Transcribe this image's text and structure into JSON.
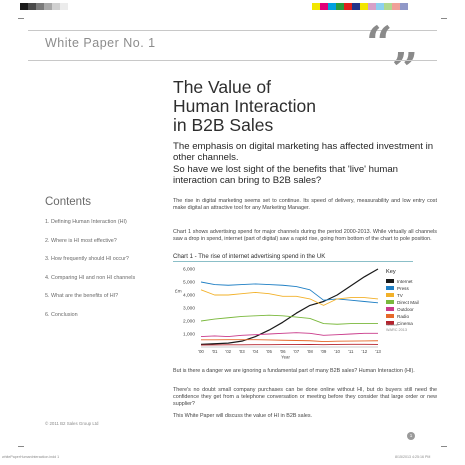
{
  "header": {
    "white_paper_label": "White Paper No. 1",
    "quote_glyph": "“„"
  },
  "title_lines": [
    "The Value of",
    "Human Interaction",
    "in B2B Sales"
  ],
  "subheads": [
    "The emphasis on digital marketing has affected investment in other channels.",
    "So have we lost sight of the benefits that 'live' human interaction can bring to B2B sales?"
  ],
  "contents": {
    "title": "Contents",
    "items": [
      "1. Defining Human Interaction (HI)",
      "2. Where is HI most effective?",
      "3. How frequently should HI occur?",
      "4. Comparing HI and non HI channels",
      "5. What are the benefits of HI?",
      "6. Conclusion"
    ]
  },
  "body": {
    "para_1": "The rise in digital marketing seems set to continue. Its speed of delivery, measurability and low entry cost make digital an attractive tool for any Marketing Manager.",
    "para_2": "Chart 1 shows advertising spend for major channels during the period 2000-2013. While virtually all channels saw a drop in spend, internet (part of digital) saw a rapid rise, going from bottom of the chart to pole position.",
    "para_3": "But is there a danger we are ignoring a fundamental part of many B2B sales? Human Interaction (HI).",
    "para_4": "There's no doubt small company purchases can be done online without HI, but do buyers still need the confidence they get from a telephone conversation or meeting before they consider that large order or new supplier?",
    "para_5": "This White Paper will discuss the value of HI in B2B sales."
  },
  "chart_data": {
    "type": "line",
    "title": "Chart 1 - The rise of internet advertising spend in the UK",
    "ylabel": "£m",
    "xlabel": "Year",
    "ylim": [
      0,
      6000
    ],
    "yticks": [
      "6,000",
      "5,000",
      "4,000",
      "3,000",
      "2,000",
      "1,000"
    ],
    "x": [
      "'00",
      "'01",
      "'02",
      "'03",
      "'04",
      "'05",
      "'06",
      "'07",
      "'08",
      "'09",
      "'10",
      "'11",
      "'12",
      "'13"
    ],
    "legend_title": "Key",
    "legend_position": "right",
    "source": "Source:\nWARC 2013",
    "series": [
      {
        "name": "Internet",
        "color": "#1a1a1a",
        "values": [
          200,
          250,
          300,
          450,
          800,
          1300,
          1900,
          2600,
          3200,
          3500,
          4000,
          4700,
          5400,
          6000
        ]
      },
      {
        "name": "Press",
        "color": "#1f7fc4",
        "values": [
          5000,
          4800,
          4750,
          4800,
          4850,
          4800,
          4750,
          4650,
          4400,
          3600,
          3700,
          3600,
          3500,
          3400
        ]
      },
      {
        "name": "TV",
        "color": "#f2b12a",
        "values": [
          4400,
          4000,
          4000,
          4100,
          4200,
          4100,
          3900,
          3900,
          3700,
          3200,
          3700,
          3800,
          3800,
          3700
        ]
      },
      {
        "name": "Direct Mail",
        "color": "#7ab83c",
        "values": [
          2000,
          2150,
          2250,
          2350,
          2400,
          2450,
          2400,
          2300,
          2200,
          1800,
          1750,
          1800,
          1800,
          1800
        ]
      },
      {
        "name": "Outdoor",
        "color": "#c93a8a",
        "values": [
          800,
          850,
          800,
          900,
          950,
          1000,
          1050,
          1100,
          1050,
          900,
          950,
          1000,
          1050,
          1050
        ]
      },
      {
        "name": "Radio",
        "color": "#e6682a",
        "values": [
          550,
          550,
          560,
          560,
          560,
          540,
          520,
          500,
          480,
          420,
          450,
          460,
          470,
          480
        ]
      },
      {
        "name": "Cinema",
        "color": "#b5232d",
        "values": [
          150,
          160,
          170,
          170,
          180,
          180,
          190,
          190,
          200,
          180,
          200,
          210,
          210,
          200
        ]
      }
    ]
  },
  "copyright": "© 2011 B2 Sales Group Ltd",
  "page_number": "1",
  "footer": {
    "left_slug": "whitePaperHumanInteraction.indd 1",
    "right_slug": "8/15/2013 4:25:16 PM"
  },
  "colors": {
    "chart_rule": "#8bbfc8",
    "registration": [
      "#1a1a1a",
      "#4a4a4a",
      "#7a7a7a",
      "#a8a8a8",
      "#d0d0d0",
      "#ececec",
      "#ffffff"
    ],
    "registration_cmyk": [
      "#f2e600",
      "#e0007a",
      "#00a0e0",
      "#2a9b3c",
      "#e0201a",
      "#24338a",
      "#f2e600",
      "#d7a0c8",
      "#8cd0f0",
      "#b0d890",
      "#f0a098",
      "#9098c8"
    ]
  }
}
